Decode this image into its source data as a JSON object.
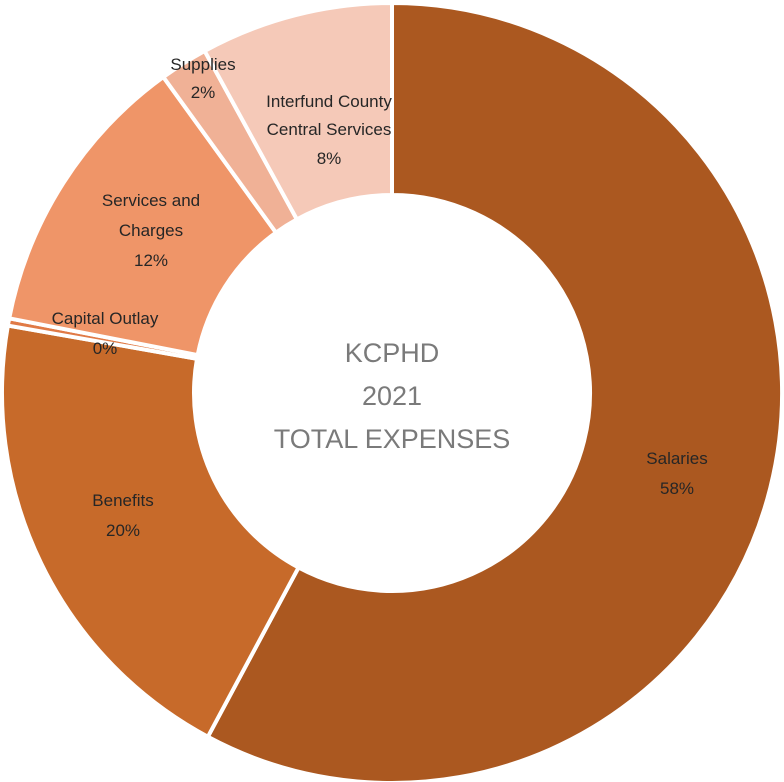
{
  "chart_data": {
    "type": "pie",
    "style": "donut",
    "title_lines": [
      "KCPHD",
      "2021",
      "TOTAL EXPENSES"
    ],
    "slices": [
      {
        "name": "Salaries",
        "value": 58,
        "label": "58%",
        "color": "#ab5820"
      },
      {
        "name": "Benefits",
        "value": 20,
        "label": "20%",
        "color": "#c76a2a"
      },
      {
        "name": "Capital Outlay",
        "value": 0.3,
        "label": "0%",
        "color": "#e07a46"
      },
      {
        "name": "Services and Charges",
        "value": 12,
        "label": "12%",
        "color": "#ef9568"
      },
      {
        "name": "Supplies",
        "value": 2,
        "label": "2%",
        "color": "#f0b196"
      },
      {
        "name": "Interfund County Central Services",
        "value": 8,
        "label": "8%",
        "color": "#f5c9b8"
      }
    ]
  }
}
